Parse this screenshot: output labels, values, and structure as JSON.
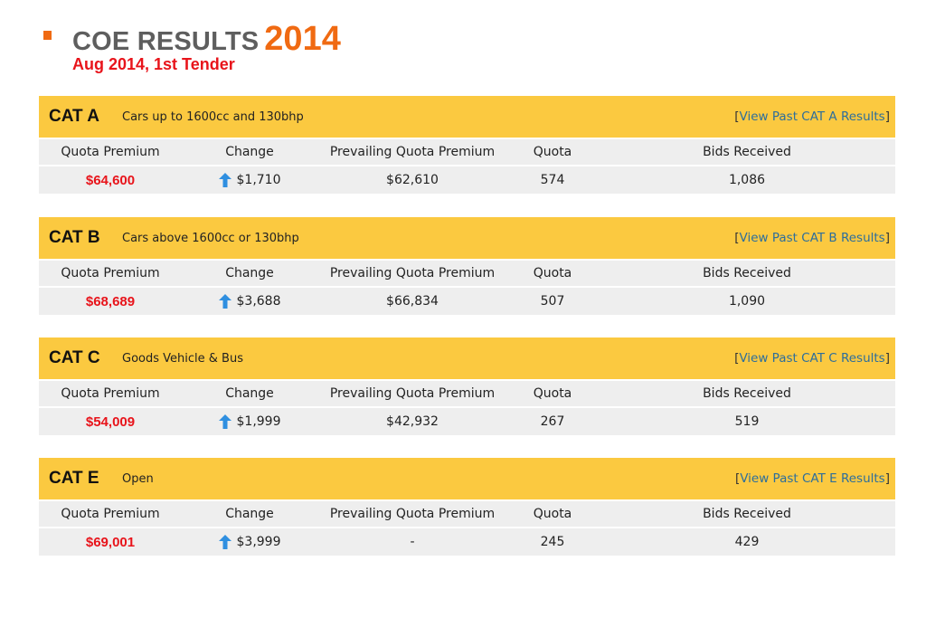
{
  "header": {
    "title": "COE RESULTS",
    "year": "2014",
    "subtitle": "Aug 2014, 1st Tender"
  },
  "columns": [
    "Quota Premium",
    "Change",
    "Prevailing Quota Premium",
    "Quota",
    "Bids Received"
  ],
  "categories": [
    {
      "name": "CAT A",
      "description": "Cars up to 1600cc and 130bhp",
      "link_open": "[",
      "link_text": "View Past CAT A Results",
      "link_close": "]",
      "quota_premium": "$64,600",
      "change_icon": "up-arrow-icon",
      "change": "$1,710",
      "prevailing_quota_premium": "$62,610",
      "quota": "574",
      "bids_received": "1,086"
    },
    {
      "name": "CAT B",
      "description": "Cars above 1600cc or 130bhp",
      "link_open": "[",
      "link_text": "View Past CAT B Results",
      "link_close": "]",
      "quota_premium": "$68,689",
      "change_icon": "up-arrow-icon",
      "change": "$3,688",
      "prevailing_quota_premium": "$66,834",
      "quota": "507",
      "bids_received": "1,090"
    },
    {
      "name": "CAT C",
      "description": "Goods Vehicle & Bus",
      "link_open": "[",
      "link_text": "View Past CAT C Results",
      "link_close": "]",
      "quota_premium": "$54,009",
      "change_icon": "up-arrow-icon",
      "change": "$1,999",
      "prevailing_quota_premium": "$42,932",
      "quota": "267",
      "bids_received": "519"
    },
    {
      "name": "CAT E",
      "description": "Open",
      "link_open": "[",
      "link_text": "View Past CAT E Results",
      "link_close": "]",
      "quota_premium": "$69,001",
      "change_icon": "up-arrow-icon",
      "change": "$3,999",
      "prevailing_quota_premium": "-",
      "quota": "245",
      "bids_received": "429"
    }
  ],
  "colors": {
    "accent_orange": "#f06a12",
    "premium_red": "#e8141b",
    "header_yellow": "#fbc940",
    "row_gray": "#eeeeee",
    "link_blue": "#2d6e9b",
    "arrow_blue": "#2f8fe0"
  }
}
